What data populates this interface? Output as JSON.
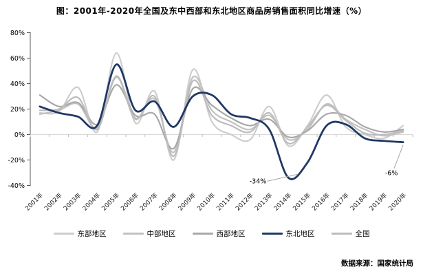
{
  "header": {
    "title": "图：2001年-2020年全国及东中西部和东北地区商品房销售面积同比增速（%）"
  },
  "footer": {
    "source": "数据来源：国家统计局"
  },
  "chart_data": {
    "type": "line",
    "title": "图：2001年-2020年全国及东中西部和东北地区商品房销售面积同比增速（%）",
    "line_style": "smooth",
    "grid": "zero-baseline-only",
    "legend_position": "bottom",
    "xlabel": "",
    "ylabel": "",
    "ylim": [
      -40,
      80
    ],
    "ytick_step": 20,
    "y_ticks": [
      "80%",
      "60%",
      "40%",
      "20%",
      "0%",
      "-20%",
      "-40%"
    ],
    "categories": [
      "2001年",
      "2002年",
      "2003年",
      "2004年",
      "2005年",
      "2006年",
      "2007年",
      "2008年",
      "2009年",
      "2010年",
      "2011年",
      "2012年",
      "2013年",
      "2014年",
      "2015年",
      "2016年",
      "2017年",
      "2018年",
      "2019年",
      "2020年"
    ],
    "series": [
      {
        "name": "东部地区",
        "color": "#cdcdcd",
        "values": [
          17,
          18,
          37,
          2,
          64,
          9,
          34,
          -20,
          51,
          10,
          0,
          -4,
          22,
          -9,
          7,
          31,
          6,
          0,
          -3,
          7
        ]
      },
      {
        "name": "中部地区",
        "color": "#c2c2c2",
        "values": [
          16,
          19,
          24,
          5,
          46,
          13,
          28,
          -14,
          45,
          19,
          10,
          4,
          15,
          -4,
          4,
          24,
          12,
          4,
          -1,
          2
        ]
      },
      {
        "name": "西部地区",
        "color": "#a8a8a8",
        "values": [
          31,
          22,
          25,
          8,
          39,
          15,
          16,
          -11,
          36,
          23,
          13,
          7,
          12,
          -2,
          3,
          16,
          15,
          6,
          2,
          4
        ]
      },
      {
        "name": "东北地区",
        "color": "#1f3864",
        "values": [
          22,
          17,
          14,
          7,
          55,
          19,
          26,
          6,
          30,
          31,
          16,
          13,
          4,
          -34,
          -22,
          7,
          8,
          -3,
          -5,
          -6
        ]
      },
      {
        "name": "全国",
        "color": "#bcbcbc",
        "values": [
          19,
          20,
          29,
          4,
          45,
          12,
          30,
          -17,
          42,
          15,
          7,
          2,
          17,
          -7,
          6,
          23,
          11,
          1,
          0,
          3
        ]
      }
    ],
    "annotations": [
      {
        "text": "-34%",
        "series": "东北地区",
        "category": "2014年",
        "value": -34
      },
      {
        "text": "-6%",
        "series": "东北地区",
        "category": "2020年",
        "value": -6
      }
    ],
    "accent_color": "#1f3864",
    "axis_color": "#595959",
    "zero_line_color": "#d9d9d9"
  }
}
